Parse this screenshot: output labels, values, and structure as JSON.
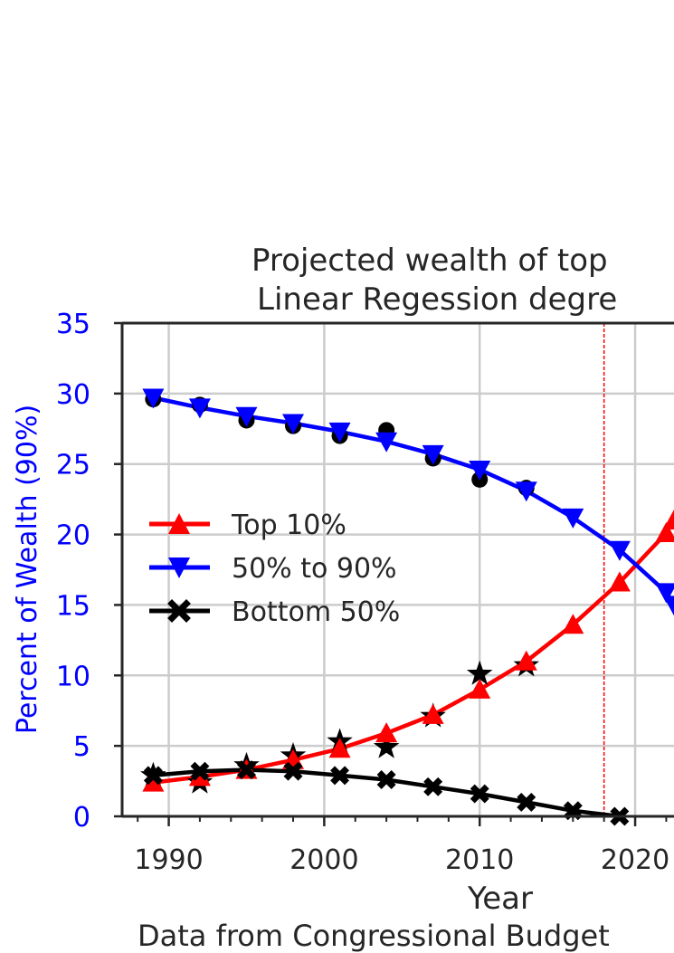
{
  "chart_data": {
    "type": "line",
    "title_line1": "Projected wealth of top",
    "title_line2": "Linear Regession degre",
    "xlabel": "Year",
    "source_note": "Data from Congressional Budget",
    "ylabel": "Percent of Wealth (90%)",
    "xlim": [
      1987,
      2022.5
    ],
    "ylim": [
      0,
      35
    ],
    "x_ticks": [
      1990,
      2000,
      2010,
      2020
    ],
    "y_ticks": [
      0,
      5,
      10,
      15,
      20,
      25,
      30,
      35
    ],
    "grid": true,
    "legend_position": "center-left",
    "projection_line_year": 2018,
    "colors": {
      "top10": "#ff0000",
      "mid": "#0000ff",
      "bottom": "#000000",
      "ytick": "#0000ff",
      "projection": "#ff0000"
    },
    "series": [
      {
        "name": "Top 10%",
        "marker": "triangle-up",
        "color": "#ff0000",
        "x": [
          1989,
          1992,
          1995,
          1998,
          2001,
          2004,
          2007,
          2010,
          2013,
          2016,
          2019,
          2022,
          2022.5
        ],
        "y": [
          2.4,
          2.8,
          3.3,
          4.0,
          4.8,
          5.9,
          7.2,
          9.0,
          11.0,
          13.6,
          16.6,
          20.1,
          21.0
        ]
      },
      {
        "name": "50% to 90%",
        "marker": "triangle-down",
        "color": "#0000ff",
        "x": [
          1989,
          1992,
          1995,
          1998,
          2001,
          2004,
          2007,
          2010,
          2013,
          2016,
          2019,
          2022,
          2022.5
        ],
        "y": [
          29.7,
          29.0,
          28.4,
          27.9,
          27.3,
          26.6,
          25.7,
          24.6,
          23.1,
          21.2,
          18.9,
          15.9,
          15.0
        ]
      },
      {
        "name": "Bottom 50%",
        "marker": "x-filled",
        "color": "#000000",
        "x": [
          1989,
          1992,
          1995,
          1998,
          2001,
          2004,
          2007,
          2010,
          2013,
          2016,
          2019
        ],
        "y": [
          2.9,
          3.2,
          3.3,
          3.2,
          2.9,
          2.6,
          2.1,
          1.6,
          1.0,
          0.4,
          0.0
        ]
      }
    ],
    "actual_mid_points": {
      "x": [
        1989,
        1992,
        1995,
        1998,
        2001,
        2004,
        2007,
        2010,
        2013
      ],
      "y": [
        29.6,
        29.2,
        28.1,
        27.7,
        27.0,
        27.4,
        25.4,
        23.9,
        23.3
      ]
    },
    "actual_top_points": {
      "x": [
        1989,
        1992,
        1995,
        1998,
        2001,
        2004,
        2007,
        2010,
        2013
      ],
      "y": [
        2.9,
        2.4,
        3.6,
        4.3,
        5.3,
        4.9,
        7.1,
        10.1,
        10.7
      ]
    }
  }
}
